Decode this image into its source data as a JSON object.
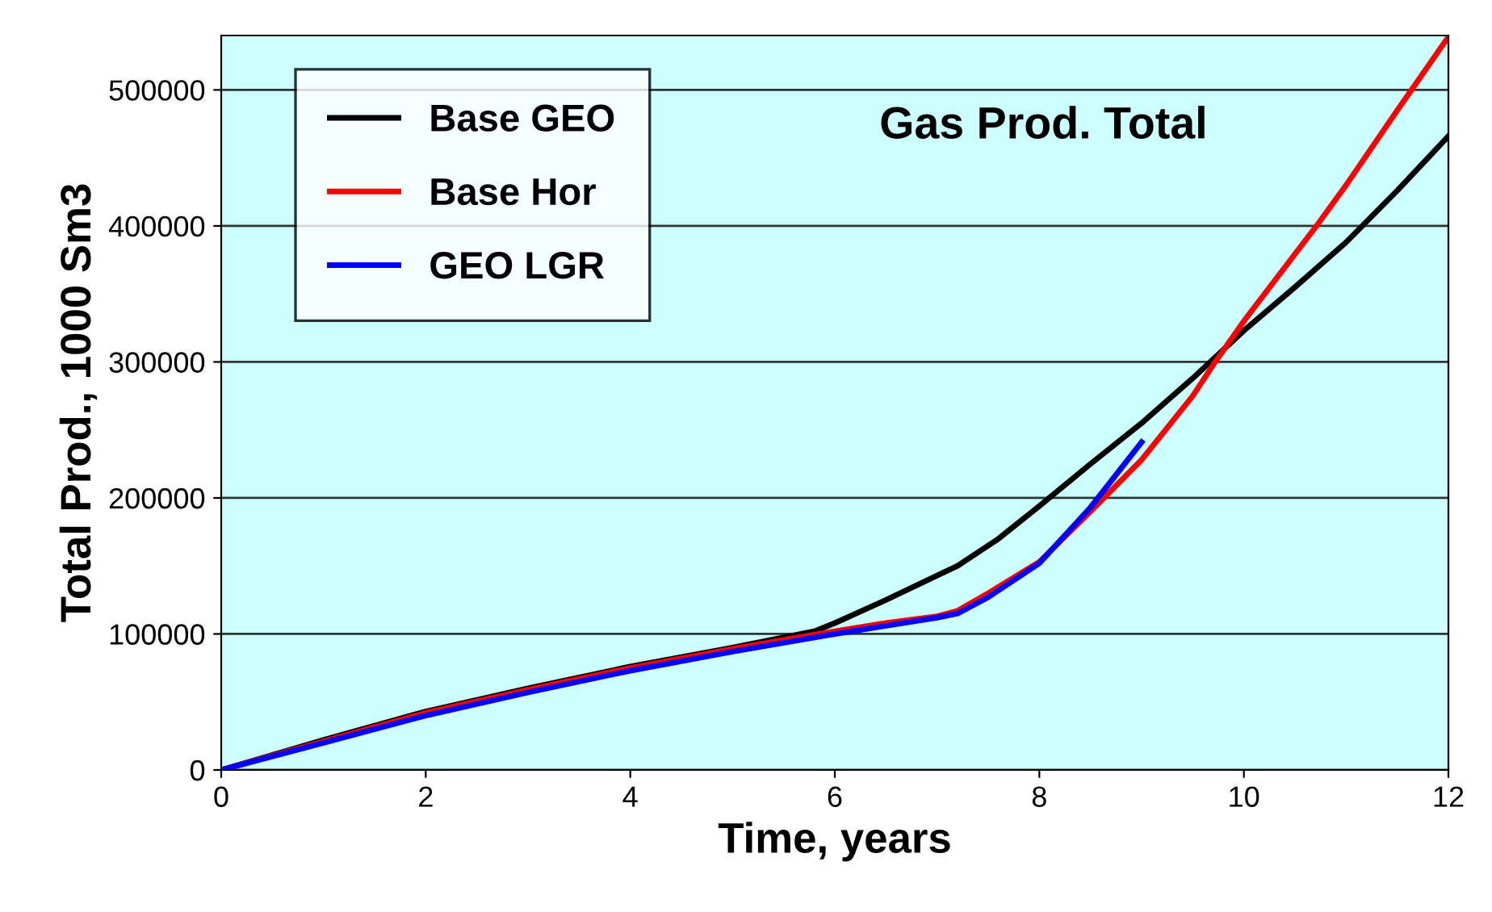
{
  "chart_data": {
    "type": "line",
    "title": "Gas Prod. Total",
    "xlabel": "Time, years",
    "ylabel": "Total Prod., 1000 Sm3",
    "xlim": [
      0,
      12
    ],
    "xticks": [
      0,
      2,
      4,
      6,
      8,
      10,
      12
    ],
    "ylim": [
      0,
      540000
    ],
    "yticks": [
      0,
      100000,
      200000,
      300000,
      400000,
      500000
    ],
    "grid": "y",
    "legend": "top left",
    "marker": "none",
    "line_style": "solid",
    "series": [
      {
        "name": "Base GEO",
        "color": "#000000",
        "x": [
          0,
          1,
          2,
          3,
          4,
          5,
          5.8,
          6,
          6.5,
          7,
          7.2,
          7.6,
          8,
          8.5,
          9,
          9.5,
          10,
          10.5,
          11,
          11.5,
          12
        ],
        "values": [
          0,
          22000,
          43000,
          60000,
          76000,
          90000,
          102000,
          108000,
          125000,
          143000,
          150000,
          170000,
          194000,
          225000,
          255000,
          288000,
          323000,
          355000,
          388000,
          426000,
          466000
        ]
      },
      {
        "name": "Base Hor",
        "color": "#ff0000",
        "x": [
          0,
          1,
          2,
          3,
          4,
          5,
          6,
          6.5,
          7,
          7.2,
          7.5,
          8,
          8.5,
          9,
          9.5,
          9.72,
          10,
          10.71,
          11,
          11.5,
          12
        ],
        "values": [
          0,
          21000,
          42000,
          59000,
          75000,
          89000,
          102000,
          108000,
          113000,
          117000,
          130000,
          153000,
          190000,
          228000,
          275000,
          300000,
          330000,
          400000,
          430000,
          485000,
          539000
        ]
      },
      {
        "name": "GEO LGR",
        "color": "#0000ff",
        "x": [
          0,
          1,
          2,
          3,
          4,
          5,
          6,
          6.5,
          7,
          7.2,
          7.5,
          8,
          8.5,
          9
        ],
        "values": [
          0,
          20000,
          40000,
          57000,
          73000,
          87000,
          100000,
          106000,
          112000,
          115000,
          127000,
          152000,
          193000,
          241000
        ]
      }
    ]
  }
}
